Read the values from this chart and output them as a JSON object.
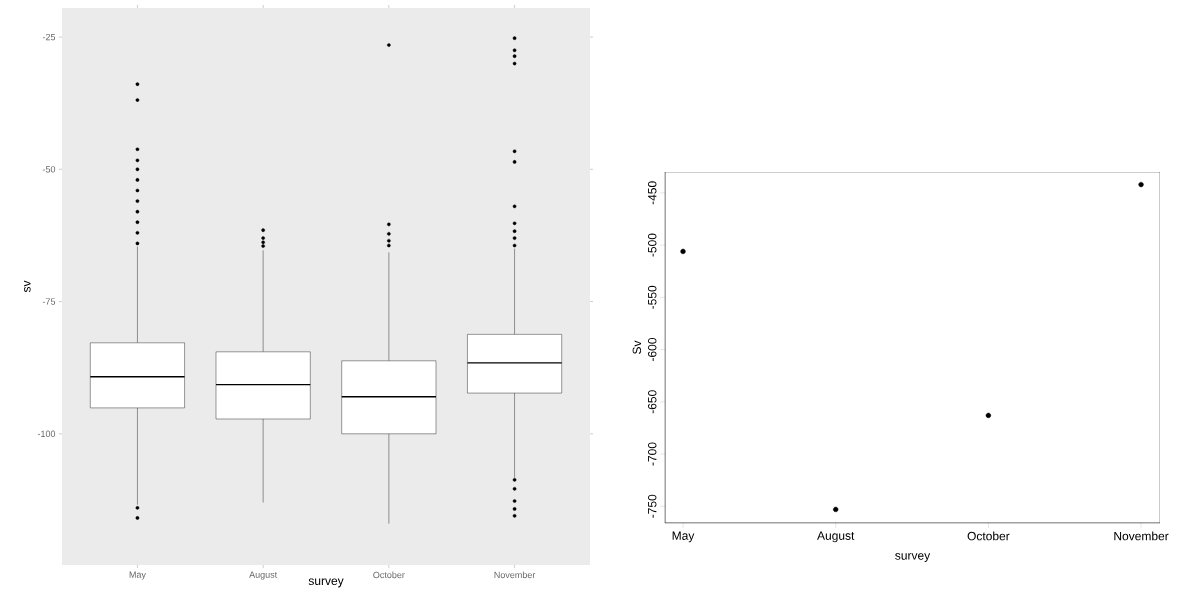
{
  "chart_data": [
    {
      "type": "box",
      "xlabel": "survey",
      "ylabel": "sv",
      "categories": [
        "May",
        "August",
        "October",
        "November"
      ],
      "boxes": [
        {
          "low": -113.4,
          "q1": -95.1,
          "median": -89.2,
          "q3": -82.8,
          "high": -64.6,
          "outliers": [
            -33.9,
            -36.9,
            -46.2,
            -48.3,
            -50,
            -52,
            -54,
            -56,
            -58,
            -60,
            -62,
            -64,
            -114,
            -115.9
          ]
        },
        {
          "low": -113,
          "q1": -97.2,
          "median": -90.7,
          "q3": -84.5,
          "high": -65.3,
          "outliers": [
            -61.5,
            -63,
            -63.8,
            -64.5
          ]
        },
        {
          "low": -117,
          "q1": -100,
          "median": -93,
          "q3": -86.2,
          "high": -65.7,
          "outliers": [
            -26.5,
            -60.4,
            -62.2,
            -63.5,
            -64.4
          ]
        },
        {
          "low": -108.3,
          "q1": -92.3,
          "median": -86.6,
          "q3": -81.2,
          "high": -65,
          "outliers": [
            -25.2,
            -27.5,
            -28.6,
            -30,
            -46.6,
            -48.6,
            -57,
            -60.2,
            -61.7,
            -63,
            -64.4,
            -108.7,
            -110.4,
            -112.7,
            -114.2,
            -115.5
          ]
        }
      ],
      "ylim": [
        -124.8,
        -19.5
      ],
      "yticks": [
        -100,
        -75,
        -50,
        -25
      ]
    },
    {
      "type": "scatter",
      "xlabel": "survey",
      "ylabel": "Sv",
      "categories": [
        "May",
        "August",
        "October",
        "November"
      ],
      "values": [
        -506,
        -753,
        -663,
        -442
      ],
      "color": "#000000",
      "marker": "circle",
      "ylim": [
        -766,
        -430
      ],
      "yticks": [
        -750,
        -700,
        -650,
        -600,
        -550,
        -500,
        -450
      ]
    }
  ]
}
